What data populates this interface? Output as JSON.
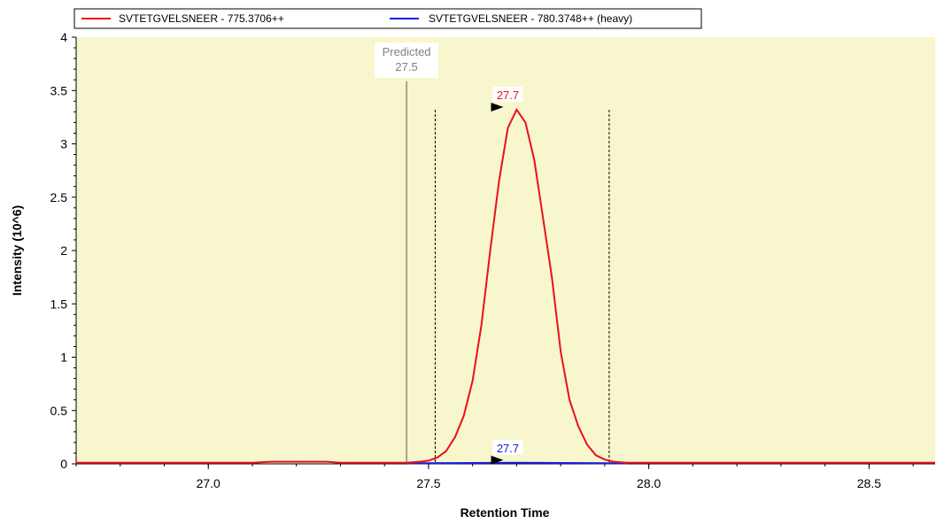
{
  "chart_data": {
    "type": "line",
    "xlabel": "Retention Time",
    "ylabel": "Intensity (10^6)",
    "xlim": [
      26.7,
      28.65
    ],
    "ylim": [
      0,
      4
    ],
    "x_ticks": [
      "27.0",
      "27.5",
      "28.0",
      "28.5"
    ],
    "y_ticks": [
      "0",
      "0.5",
      "1",
      "1.5",
      "2",
      "2.5",
      "3",
      "3.5",
      "4"
    ],
    "plot_background": "#f8f6cc",
    "legend_position": "top",
    "series": [
      {
        "name": "SVTETGVELSNEER - 775.3706++",
        "color": "#e8101c",
        "x": [
          26.7,
          27.0,
          27.1,
          27.14,
          27.2,
          27.27,
          27.3,
          27.4,
          27.45,
          27.48,
          27.5,
          27.52,
          27.54,
          27.56,
          27.58,
          27.6,
          27.62,
          27.64,
          27.66,
          27.68,
          27.7,
          27.72,
          27.74,
          27.76,
          27.78,
          27.8,
          27.82,
          27.84,
          27.86,
          27.88,
          27.9,
          27.92,
          27.95,
          28.0,
          28.3,
          28.65
        ],
        "y": [
          0.01,
          0.01,
          0.01,
          0.02,
          0.02,
          0.02,
          0.01,
          0.01,
          0.01,
          0.02,
          0.03,
          0.06,
          0.12,
          0.25,
          0.45,
          0.78,
          1.3,
          2.0,
          2.65,
          3.15,
          3.32,
          3.2,
          2.85,
          2.3,
          1.75,
          1.05,
          0.6,
          0.35,
          0.18,
          0.08,
          0.04,
          0.02,
          0.01,
          0.01,
          0.01,
          0.01
        ]
      },
      {
        "name": "SVTETGVELSNEER - 780.3748++ (heavy)",
        "color": "#1a1adf",
        "x": [
          27.45,
          27.6,
          27.7,
          27.8,
          27.95
        ],
        "y": [
          0.005,
          0.008,
          0.01,
          0.008,
          0.005
        ]
      }
    ],
    "annotations": {
      "predicted": {
        "label": "Predicted",
        "value": "27.5",
        "x": 27.45
      },
      "peak_heavy_label": "27.7",
      "peak_light_label": "27.7",
      "peak_light": {
        "x": 27.68,
        "y": 3.32
      },
      "peak_heavy": {
        "x": 27.68,
        "y": 0.01
      },
      "integration_bounds": [
        27.515,
        27.91
      ]
    }
  }
}
